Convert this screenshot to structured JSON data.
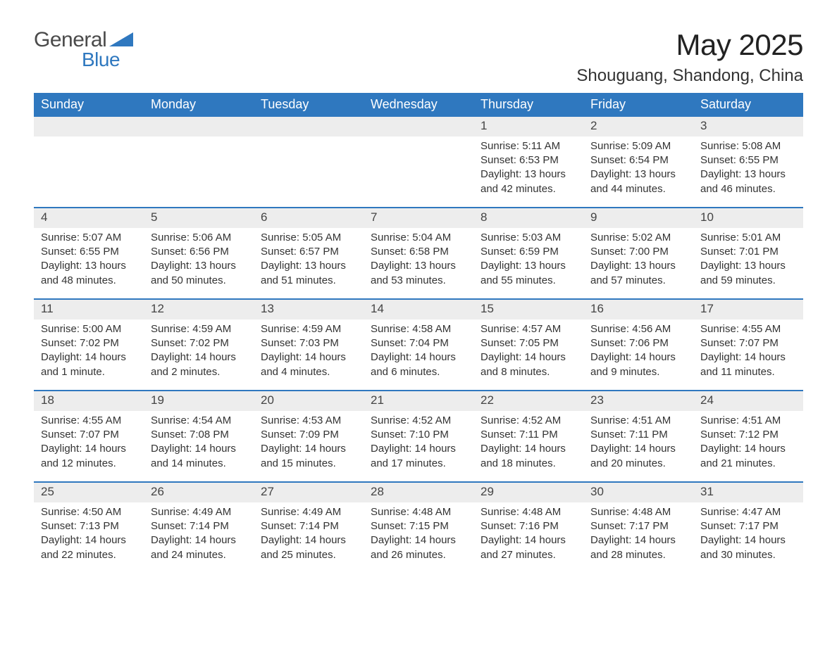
{
  "logo": {
    "general": "General",
    "blue": "Blue",
    "shape_fill": "#2f78bf"
  },
  "title": {
    "month": "May 2025",
    "location": "Shouguang, Shandong, China"
  },
  "colors": {
    "header_bg": "#2f78bf",
    "header_text": "#ffffff",
    "daynum_bg": "#ededed",
    "row_border": "#2f78bf",
    "body_text": "#333333",
    "page_bg": "#ffffff"
  },
  "weekdays": [
    "Sunday",
    "Monday",
    "Tuesday",
    "Wednesday",
    "Thursday",
    "Friday",
    "Saturday"
  ],
  "weeks": [
    [
      {
        "empty": true
      },
      {
        "empty": true
      },
      {
        "empty": true
      },
      {
        "empty": true
      },
      {
        "num": "1",
        "sunrise": "Sunrise: 5:11 AM",
        "sunset": "Sunset: 6:53 PM",
        "daylight1": "Daylight: 13 hours",
        "daylight2": "and 42 minutes."
      },
      {
        "num": "2",
        "sunrise": "Sunrise: 5:09 AM",
        "sunset": "Sunset: 6:54 PM",
        "daylight1": "Daylight: 13 hours",
        "daylight2": "and 44 minutes."
      },
      {
        "num": "3",
        "sunrise": "Sunrise: 5:08 AM",
        "sunset": "Sunset: 6:55 PM",
        "daylight1": "Daylight: 13 hours",
        "daylight2": "and 46 minutes."
      }
    ],
    [
      {
        "num": "4",
        "sunrise": "Sunrise: 5:07 AM",
        "sunset": "Sunset: 6:55 PM",
        "daylight1": "Daylight: 13 hours",
        "daylight2": "and 48 minutes."
      },
      {
        "num": "5",
        "sunrise": "Sunrise: 5:06 AM",
        "sunset": "Sunset: 6:56 PM",
        "daylight1": "Daylight: 13 hours",
        "daylight2": "and 50 minutes."
      },
      {
        "num": "6",
        "sunrise": "Sunrise: 5:05 AM",
        "sunset": "Sunset: 6:57 PM",
        "daylight1": "Daylight: 13 hours",
        "daylight2": "and 51 minutes."
      },
      {
        "num": "7",
        "sunrise": "Sunrise: 5:04 AM",
        "sunset": "Sunset: 6:58 PM",
        "daylight1": "Daylight: 13 hours",
        "daylight2": "and 53 minutes."
      },
      {
        "num": "8",
        "sunrise": "Sunrise: 5:03 AM",
        "sunset": "Sunset: 6:59 PM",
        "daylight1": "Daylight: 13 hours",
        "daylight2": "and 55 minutes."
      },
      {
        "num": "9",
        "sunrise": "Sunrise: 5:02 AM",
        "sunset": "Sunset: 7:00 PM",
        "daylight1": "Daylight: 13 hours",
        "daylight2": "and 57 minutes."
      },
      {
        "num": "10",
        "sunrise": "Sunrise: 5:01 AM",
        "sunset": "Sunset: 7:01 PM",
        "daylight1": "Daylight: 13 hours",
        "daylight2": "and 59 minutes."
      }
    ],
    [
      {
        "num": "11",
        "sunrise": "Sunrise: 5:00 AM",
        "sunset": "Sunset: 7:02 PM",
        "daylight1": "Daylight: 14 hours",
        "daylight2": "and 1 minute."
      },
      {
        "num": "12",
        "sunrise": "Sunrise: 4:59 AM",
        "sunset": "Sunset: 7:02 PM",
        "daylight1": "Daylight: 14 hours",
        "daylight2": "and 2 minutes."
      },
      {
        "num": "13",
        "sunrise": "Sunrise: 4:59 AM",
        "sunset": "Sunset: 7:03 PM",
        "daylight1": "Daylight: 14 hours",
        "daylight2": "and 4 minutes."
      },
      {
        "num": "14",
        "sunrise": "Sunrise: 4:58 AM",
        "sunset": "Sunset: 7:04 PM",
        "daylight1": "Daylight: 14 hours",
        "daylight2": "and 6 minutes."
      },
      {
        "num": "15",
        "sunrise": "Sunrise: 4:57 AM",
        "sunset": "Sunset: 7:05 PM",
        "daylight1": "Daylight: 14 hours",
        "daylight2": "and 8 minutes."
      },
      {
        "num": "16",
        "sunrise": "Sunrise: 4:56 AM",
        "sunset": "Sunset: 7:06 PM",
        "daylight1": "Daylight: 14 hours",
        "daylight2": "and 9 minutes."
      },
      {
        "num": "17",
        "sunrise": "Sunrise: 4:55 AM",
        "sunset": "Sunset: 7:07 PM",
        "daylight1": "Daylight: 14 hours",
        "daylight2": "and 11 minutes."
      }
    ],
    [
      {
        "num": "18",
        "sunrise": "Sunrise: 4:55 AM",
        "sunset": "Sunset: 7:07 PM",
        "daylight1": "Daylight: 14 hours",
        "daylight2": "and 12 minutes."
      },
      {
        "num": "19",
        "sunrise": "Sunrise: 4:54 AM",
        "sunset": "Sunset: 7:08 PM",
        "daylight1": "Daylight: 14 hours",
        "daylight2": "and 14 minutes."
      },
      {
        "num": "20",
        "sunrise": "Sunrise: 4:53 AM",
        "sunset": "Sunset: 7:09 PM",
        "daylight1": "Daylight: 14 hours",
        "daylight2": "and 15 minutes."
      },
      {
        "num": "21",
        "sunrise": "Sunrise: 4:52 AM",
        "sunset": "Sunset: 7:10 PM",
        "daylight1": "Daylight: 14 hours",
        "daylight2": "and 17 minutes."
      },
      {
        "num": "22",
        "sunrise": "Sunrise: 4:52 AM",
        "sunset": "Sunset: 7:11 PM",
        "daylight1": "Daylight: 14 hours",
        "daylight2": "and 18 minutes."
      },
      {
        "num": "23",
        "sunrise": "Sunrise: 4:51 AM",
        "sunset": "Sunset: 7:11 PM",
        "daylight1": "Daylight: 14 hours",
        "daylight2": "and 20 minutes."
      },
      {
        "num": "24",
        "sunrise": "Sunrise: 4:51 AM",
        "sunset": "Sunset: 7:12 PM",
        "daylight1": "Daylight: 14 hours",
        "daylight2": "and 21 minutes."
      }
    ],
    [
      {
        "num": "25",
        "sunrise": "Sunrise: 4:50 AM",
        "sunset": "Sunset: 7:13 PM",
        "daylight1": "Daylight: 14 hours",
        "daylight2": "and 22 minutes."
      },
      {
        "num": "26",
        "sunrise": "Sunrise: 4:49 AM",
        "sunset": "Sunset: 7:14 PM",
        "daylight1": "Daylight: 14 hours",
        "daylight2": "and 24 minutes."
      },
      {
        "num": "27",
        "sunrise": "Sunrise: 4:49 AM",
        "sunset": "Sunset: 7:14 PM",
        "daylight1": "Daylight: 14 hours",
        "daylight2": "and 25 minutes."
      },
      {
        "num": "28",
        "sunrise": "Sunrise: 4:48 AM",
        "sunset": "Sunset: 7:15 PM",
        "daylight1": "Daylight: 14 hours",
        "daylight2": "and 26 minutes."
      },
      {
        "num": "29",
        "sunrise": "Sunrise: 4:48 AM",
        "sunset": "Sunset: 7:16 PM",
        "daylight1": "Daylight: 14 hours",
        "daylight2": "and 27 minutes."
      },
      {
        "num": "30",
        "sunrise": "Sunrise: 4:48 AM",
        "sunset": "Sunset: 7:17 PM",
        "daylight1": "Daylight: 14 hours",
        "daylight2": "and 28 minutes."
      },
      {
        "num": "31",
        "sunrise": "Sunrise: 4:47 AM",
        "sunset": "Sunset: 7:17 PM",
        "daylight1": "Daylight: 14 hours",
        "daylight2": "and 30 minutes."
      }
    ]
  ]
}
